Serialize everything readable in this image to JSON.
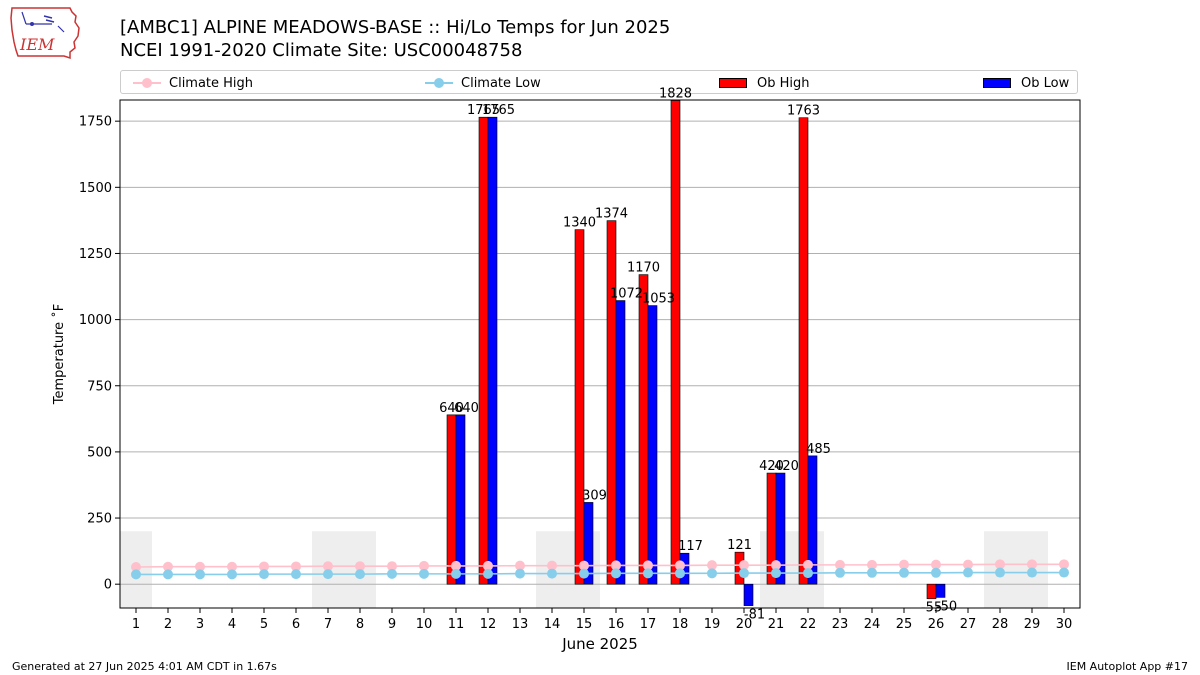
{
  "header": {
    "title_line1": "[AMBC1] ALPINE MEADOWS-BASE :: Hi/Lo Temps for Jun 2025",
    "title_line2": "NCEI 1991-2020 Climate Site: USC00048758",
    "logo_text": "IEM"
  },
  "legend": {
    "climate_high": "Climate High",
    "climate_low": "Climate Low",
    "ob_high": "Ob High",
    "ob_low": "Ob Low"
  },
  "footer": {
    "left": "Generated at 27 Jun 2025 4:01 AM CDT in 1.67s",
    "right": "IEM Autoplot App #17"
  },
  "colors": {
    "ob_high": "#ff0000",
    "ob_low": "#0000ff",
    "climate_high": "#ffc0cb",
    "climate_low": "#87ceeb",
    "weekend_shade": "#eeeeee",
    "grid": "#b0b0b0",
    "logo": "#cc3333"
  },
  "chart_data": {
    "type": "bar",
    "xlabel": "June 2025",
    "ylabel": "Temperature ˚F",
    "ylim": [
      -90,
      1830
    ],
    "xlim": [
      0.5,
      30.5
    ],
    "yticks": [
      0,
      250,
      500,
      750,
      1000,
      1250,
      1500,
      1750
    ],
    "grid": "horizontal",
    "legend_position": "top",
    "categories": [
      1,
      2,
      3,
      4,
      5,
      6,
      7,
      8,
      9,
      10,
      11,
      12,
      13,
      14,
      15,
      16,
      17,
      18,
      19,
      20,
      21,
      22,
      23,
      24,
      25,
      26,
      27,
      28,
      29,
      30
    ],
    "weekend_shading": [
      [
        0.5,
        1.5
      ],
      [
        6.5,
        8.5
      ],
      [
        13.5,
        15.5
      ],
      [
        20.5,
        22.5
      ],
      [
        27.5,
        29.5
      ]
    ],
    "series": [
      {
        "name": "Ob High",
        "values": [
          null,
          null,
          null,
          null,
          null,
          null,
          null,
          null,
          null,
          null,
          640,
          1765,
          null,
          null,
          1340,
          1374,
          1170,
          1828,
          null,
          121,
          420,
          1763,
          null,
          null,
          null,
          -55,
          null,
          null,
          null,
          null
        ]
      },
      {
        "name": "Ob Low",
        "values": [
          null,
          null,
          null,
          null,
          null,
          null,
          null,
          null,
          null,
          null,
          640,
          1765,
          null,
          null,
          309,
          1072,
          1053,
          117,
          null,
          -81,
          420,
          485,
          null,
          null,
          null,
          -50,
          null,
          null,
          null,
          null
        ]
      },
      {
        "name": "Climate High",
        "values": [
          65,
          66,
          66,
          66,
          67,
          67,
          68,
          68,
          68,
          69,
          69,
          69,
          70,
          70,
          70,
          71,
          71,
          71,
          72,
          72,
          72,
          73,
          73,
          73,
          74,
          74,
          74,
          75,
          75,
          75
        ]
      },
      {
        "name": "Climate Low",
        "values": [
          37,
          37,
          37,
          37,
          38,
          38,
          38,
          38,
          39,
          39,
          39,
          39,
          40,
          40,
          40,
          41,
          41,
          41,
          41,
          42,
          42,
          42,
          43,
          43,
          43,
          43,
          44,
          44,
          44,
          44
        ]
      }
    ],
    "bar_labels": [
      {
        "day": 11,
        "text": "640"
      },
      {
        "day": 11,
        "text": "640"
      },
      {
        "day": 12,
        "text": "1765"
      },
      {
        "day": 12,
        "text": "1765"
      },
      {
        "day": 15,
        "text": "1340"
      },
      {
        "day": 15,
        "text": "309"
      },
      {
        "day": 16,
        "text": "1374"
      },
      {
        "day": 16,
        "text": "1072"
      },
      {
        "day": 17,
        "text": "1170"
      },
      {
        "day": 17,
        "text": "1053"
      },
      {
        "day": 18,
        "text": "1828"
      },
      {
        "day": 18,
        "text": "117"
      },
      {
        "day": 20,
        "text": "121"
      },
      {
        "day": 20,
        "text": "-81"
      },
      {
        "day": 21,
        "text": "420"
      },
      {
        "day": 21,
        "text": "420"
      },
      {
        "day": 22,
        "text": "1763"
      },
      {
        "day": 22,
        "text": "485"
      },
      {
        "day": 26,
        "text": "-55"
      },
      {
        "day": 26,
        "text": "-50"
      }
    ]
  }
}
